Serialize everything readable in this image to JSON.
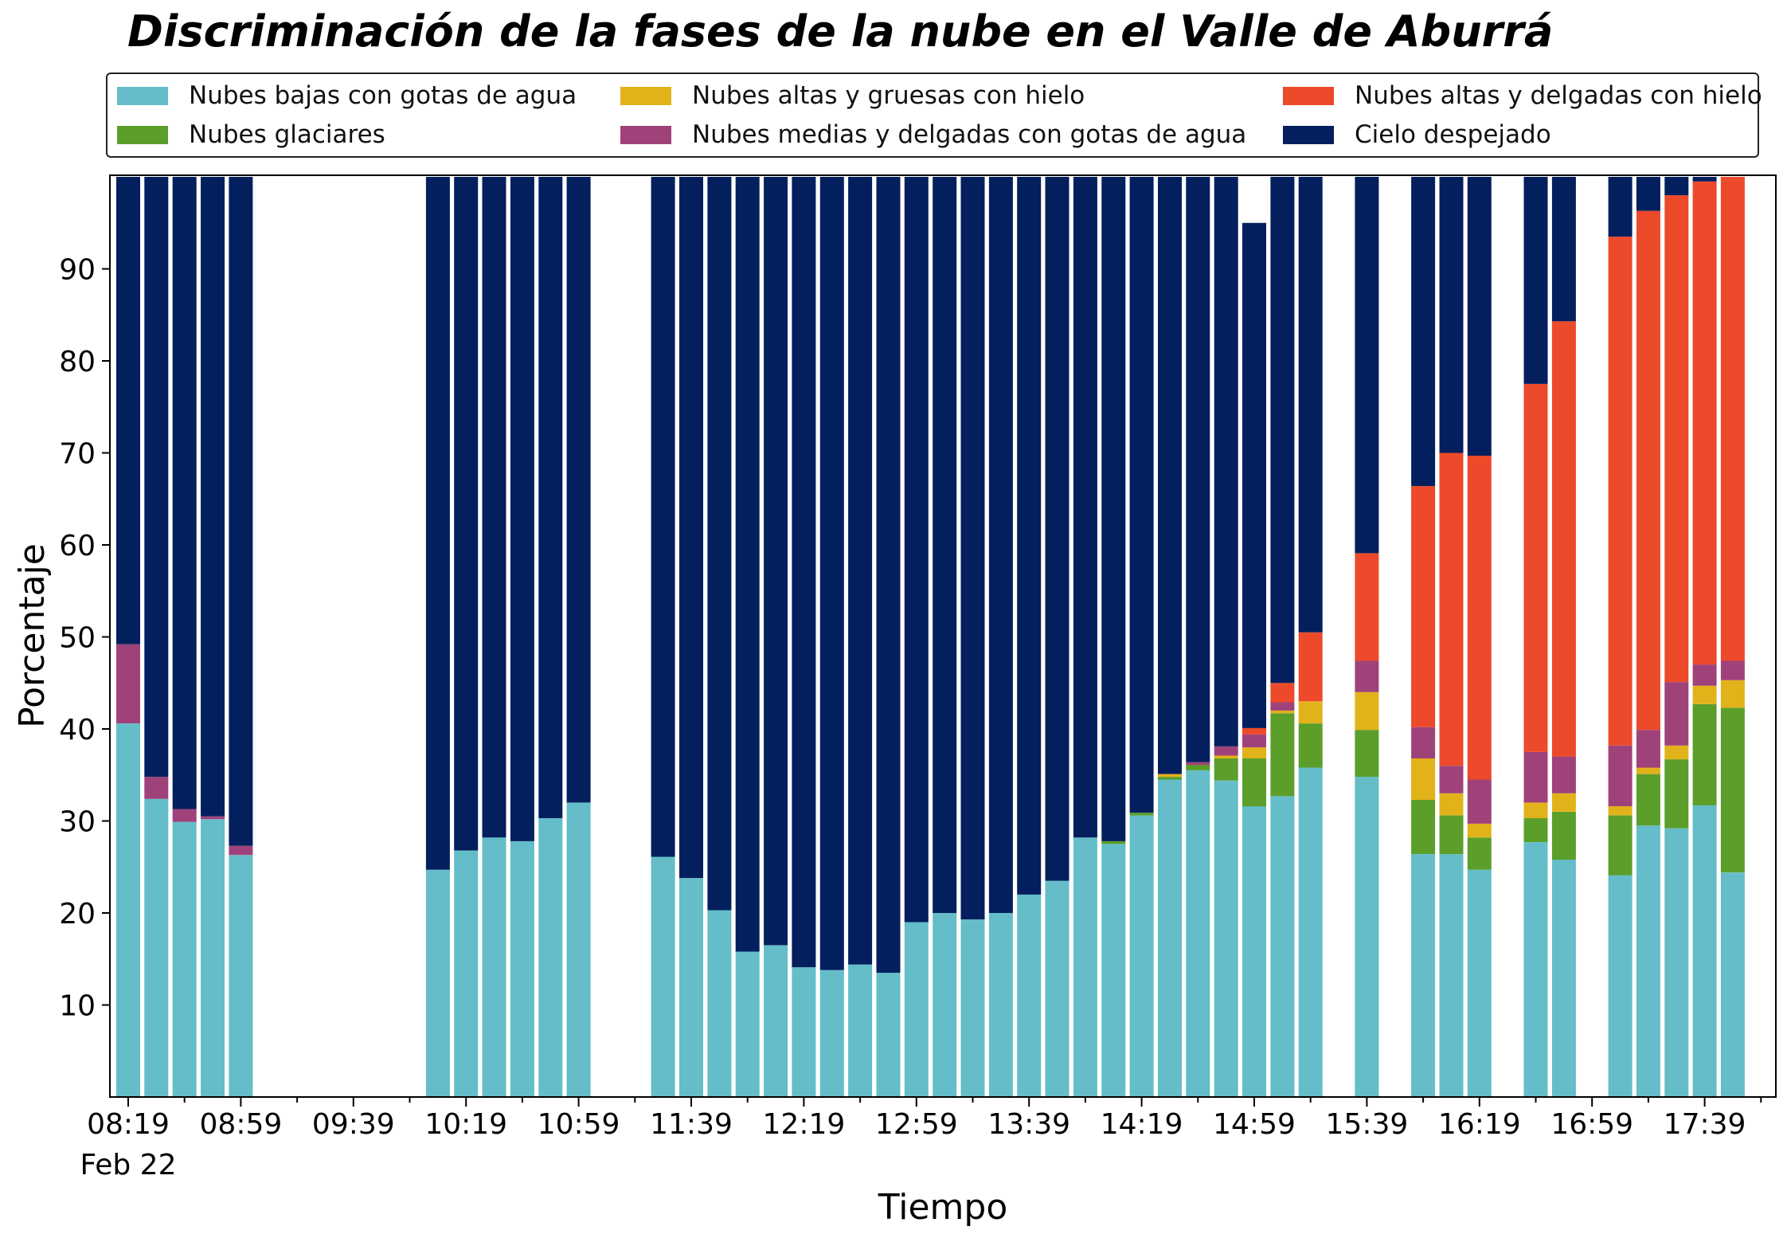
{
  "chart_data": {
    "type": "bar",
    "stacked": true,
    "title": "Discriminación de la fases de la nube en el Valle de Aburrá",
    "xlabel": "Tiempo",
    "ylabel": "Porcentaje",
    "ylim": [
      0,
      100
    ],
    "yticks": [
      10,
      20,
      30,
      40,
      50,
      60,
      70,
      80,
      90
    ],
    "xtick_labels": [
      "08:19",
      "08:59",
      "09:39",
      "10:19",
      "10:59",
      "11:39",
      "12:19",
      "12:59",
      "13:39",
      "14:19",
      "14:59",
      "15:39",
      "16:19",
      "16:59",
      "17:39"
    ],
    "xtick_sublabel": "Feb 22",
    "legend_position": "top",
    "x": [
      "08:19",
      "08:29",
      "08:39",
      "08:49",
      "08:59",
      "09:09",
      "09:19",
      "09:29",
      "09:39",
      "09:49",
      "09:59",
      "10:09",
      "10:19",
      "10:29",
      "10:39",
      "10:49",
      "10:59",
      "11:09",
      "11:19",
      "11:29",
      "11:39",
      "11:49",
      "11:59",
      "12:09",
      "12:19",
      "12:29",
      "12:39",
      "12:49",
      "12:59",
      "13:09",
      "13:19",
      "13:29",
      "13:39",
      "13:49",
      "13:59",
      "14:09",
      "14:19",
      "14:29",
      "14:39",
      "14:49",
      "14:59",
      "15:09",
      "15:19",
      "15:29",
      "15:39",
      "15:49",
      "15:59",
      "16:09",
      "16:19",
      "16:29",
      "16:39",
      "16:49",
      "16:59",
      "17:09",
      "17:19",
      "17:29",
      "17:39",
      "17:49"
    ],
    "series": [
      {
        "name": "Nubes bajas con gotas de agua",
        "color": "#64BDC8",
        "values": [
          40.6,
          32.4,
          29.9,
          30.2,
          26.3,
          null,
          null,
          null,
          null,
          null,
          null,
          24.7,
          26.8,
          28.2,
          27.8,
          30.3,
          32.0,
          null,
          null,
          26.1,
          23.8,
          20.3,
          15.8,
          16.5,
          14.1,
          13.8,
          14.4,
          13.5,
          19.0,
          20.0,
          19.3,
          20.0,
          22.0,
          23.5,
          28.2,
          27.5,
          30.6,
          34.5,
          35.5,
          34.4,
          31.6,
          32.7,
          35.8,
          null,
          34.8,
          null,
          26.4,
          26.4,
          24.7,
          null,
          27.7,
          25.8,
          null,
          24.1,
          29.5,
          29.2,
          31.7,
          24.4
        ]
      },
      {
        "name": "Nubes glaciares",
        "color": "#5B9E2A",
        "values": [
          0,
          0,
          0,
          0,
          0,
          null,
          null,
          null,
          null,
          null,
          null,
          0,
          0,
          0,
          0,
          0,
          0,
          null,
          null,
          0,
          0,
          0,
          0,
          0,
          0,
          0,
          0,
          0,
          0,
          0,
          0,
          0,
          0,
          0,
          0,
          0.3,
          0.3,
          0.3,
          0.6,
          2.4,
          5.2,
          9.0,
          4.8,
          null,
          5.1,
          null,
          5.9,
          4.2,
          3.5,
          null,
          2.6,
          5.2,
          null,
          6.5,
          5.6,
          7.5,
          11.0,
          17.9
        ]
      },
      {
        "name": "Nubes altas y gruesas con hielo",
        "color": "#E2B21A",
        "values": [
          0,
          0,
          0,
          0,
          0,
          null,
          null,
          null,
          null,
          null,
          null,
          0,
          0,
          0,
          0,
          0,
          0,
          null,
          null,
          0,
          0,
          0,
          0,
          0,
          0,
          0,
          0,
          0,
          0,
          0,
          0,
          0,
          0,
          0,
          0,
          0,
          0,
          0.3,
          0,
          0.3,
          1.2,
          0.3,
          2.4,
          null,
          4.1,
          null,
          4.5,
          2.4,
          1.5,
          null,
          1.7,
          2.0,
          null,
          1.0,
          0.7,
          1.5,
          2.0,
          3.0
        ]
      },
      {
        "name": "Nubes medias y delgadas con gotas de agua",
        "color": "#A0427A",
        "values": [
          8.6,
          2.4,
          1.4,
          0.3,
          1.0,
          null,
          null,
          null,
          null,
          null,
          null,
          0,
          0,
          0,
          0,
          0,
          0,
          null,
          null,
          0,
          0,
          0,
          0,
          0,
          0,
          0,
          0,
          0,
          0,
          0,
          0,
          0,
          0,
          0,
          0,
          0,
          0,
          0,
          0.3,
          1.0,
          1.4,
          0.9,
          0,
          null,
          3.4,
          null,
          3.4,
          3.0,
          4.8,
          null,
          5.5,
          4.0,
          null,
          6.6,
          4.1,
          6.9,
          2.3,
          2.1
        ]
      },
      {
        "name": "Nubes altas y delgadas con hielo",
        "color": "#EC4A2A",
        "values": [
          0,
          0,
          0,
          0,
          0,
          null,
          null,
          null,
          null,
          null,
          null,
          0,
          0,
          0,
          0,
          0,
          0,
          null,
          null,
          0,
          0,
          0,
          0,
          0,
          0,
          0,
          0,
          0,
          0,
          0,
          0,
          0,
          0,
          0,
          0,
          0,
          0,
          0,
          0,
          0,
          0.7,
          2.1,
          7.5,
          null,
          11.7,
          null,
          26.2,
          34.0,
          35.2,
          null,
          40.0,
          47.3,
          null,
          55.3,
          56.4,
          52.9,
          52.5,
          52.6
        ]
      },
      {
        "name": "Cielo despejado",
        "color": "#041F5E",
        "values": [
          50.8,
          65.2,
          68.7,
          69.5,
          72.7,
          null,
          null,
          null,
          null,
          null,
          null,
          75.3,
          73.2,
          71.8,
          72.2,
          69.7,
          68.0,
          null,
          null,
          73.9,
          76.2,
          79.7,
          84.2,
          83.5,
          85.9,
          86.2,
          85.6,
          86.5,
          81.0,
          80.0,
          80.7,
          80.0,
          78.0,
          76.5,
          71.8,
          72.2,
          69.1,
          64.9,
          63.6,
          61.9,
          54.9,
          55.0,
          49.5,
          null,
          40.9,
          null,
          33.6,
          30.0,
          30.3,
          null,
          22.5,
          15.7,
          null,
          6.5,
          3.7,
          2.0,
          0.5,
          0
        ]
      }
    ]
  }
}
